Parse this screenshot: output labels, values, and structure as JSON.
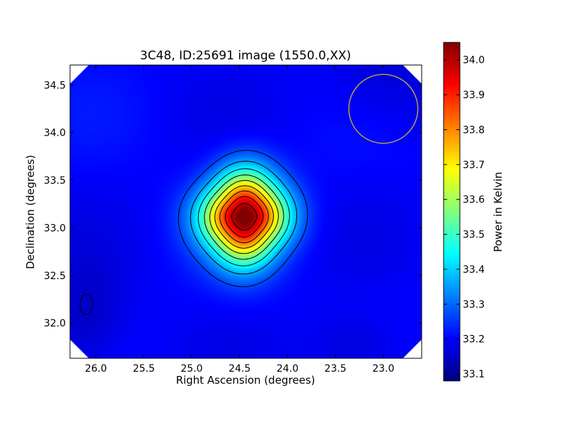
{
  "chart_data": {
    "type": "heatmap",
    "title": "3C48, ID:25691 image (1550.0,XX)",
    "xlabel": "Right Ascension (degrees)",
    "ylabel": "Declination (degrees)",
    "colorbar_label": "Power in Kelvin",
    "colormap": "jet",
    "xlim": [
      26.27,
      22.6
    ],
    "ylim": [
      31.63,
      34.71
    ],
    "x_ticks": [
      "26.0",
      "25.5",
      "25.0",
      "24.5",
      "24.0",
      "23.5",
      "23.0"
    ],
    "x_tick_values": [
      26.0,
      25.5,
      25.0,
      24.5,
      24.0,
      23.5,
      23.0
    ],
    "y_ticks": [
      "32.0",
      "32.5",
      "33.0",
      "33.5",
      "34.0",
      "34.5"
    ],
    "y_tick_values": [
      32.0,
      32.5,
      33.0,
      33.5,
      34.0,
      34.5
    ],
    "colorbar_range": [
      33.08,
      34.05
    ],
    "colorbar_ticks": [
      "33.1",
      "33.2",
      "33.3",
      "33.4",
      "33.5",
      "33.6",
      "33.7",
      "33.8",
      "33.9",
      "34.0"
    ],
    "colorbar_tick_values": [
      33.1,
      33.2,
      33.3,
      33.4,
      33.5,
      33.6,
      33.7,
      33.8,
      33.9,
      34.0
    ],
    "source_peak": {
      "ra": 24.45,
      "dec": 33.12,
      "power": 34.05
    },
    "background_level": 33.2,
    "contour_levels": [
      33.15,
      33.27,
      33.36,
      33.45,
      33.54,
      33.63,
      33.72,
      33.81,
      33.9,
      33.99
    ],
    "beam_circle": {
      "ra": 23.0,
      "dec": 34.25,
      "radius_deg": 0.36,
      "color": "#c8b82a"
    },
    "grid": false,
    "legend": "none"
  }
}
